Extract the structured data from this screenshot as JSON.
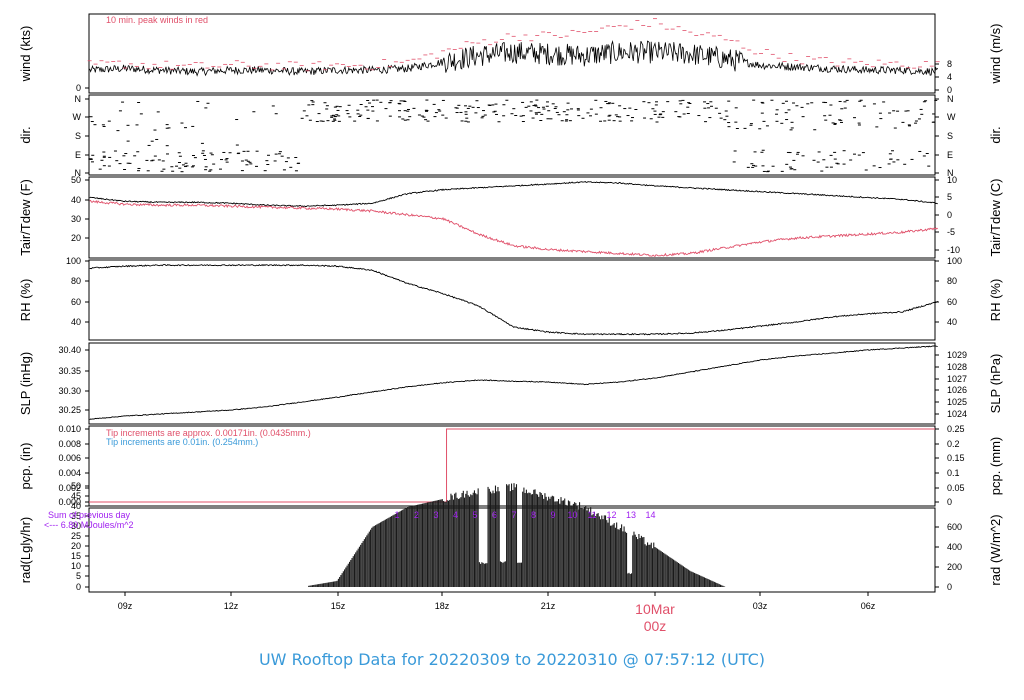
{
  "footer": {
    "title": "UW Rooftop Data for 20220309  to  20220310 @ 07:57:12  (UTC)",
    "color": "#3a9ad9"
  },
  "xaxis": {
    "ticks": [
      "09z",
      "12z",
      "15z",
      "18z",
      "21z",
      "00z",
      "03z",
      "06z"
    ],
    "date_label": "10Mar",
    "date_tick": "00z",
    "date_color": "#e0506a"
  },
  "colors": {
    "accent": "#e0506a",
    "blue": "#3a9ad9",
    "purple": "#a020f0"
  },
  "panels": {
    "wind": {
      "ylabel_left": "wind (kts)",
      "ylabel_right": "wind (m/s)",
      "ticks_left": [
        "0",
        "5",
        "10",
        "15",
        "20"
      ],
      "ticks_right": [
        "0",
        "2",
        "4",
        "6",
        "8",
        "10"
      ],
      "note": "10 min. peak winds in red"
    },
    "dir": {
      "ylabel_left": "dir.",
      "ylabel_right": "dir.",
      "ticks_left": [
        "N",
        "E",
        "S",
        "W",
        "N"
      ],
      "ticks_right": [
        "N",
        "E",
        "S",
        "W",
        "N"
      ]
    },
    "temp": {
      "ylabel_left": "Tair/Tdew (F)",
      "ylabel_right": "Tair/Tdew (C)",
      "ticks_left": [
        "20",
        "30",
        "40",
        "50"
      ],
      "ticks_right": [
        "-10",
        "-5",
        "0",
        "5",
        "10"
      ]
    },
    "rh": {
      "ylabel_left": "RH (%)",
      "ylabel_right": "RH (%)",
      "ticks_left": [
        "40",
        "60",
        "80",
        "100"
      ],
      "ticks_right": [
        "40",
        "60",
        "80",
        "100"
      ]
    },
    "slp": {
      "ylabel_left": "SLP (inHg)",
      "ylabel_right": "SLP (hPa)",
      "ticks_left": [
        "30.25",
        "30.30",
        "30.35",
        "30.40"
      ],
      "ticks_right": [
        "1024",
        "1025",
        "1026",
        "1027",
        "1028",
        "1029"
      ]
    },
    "pcp": {
      "ylabel_left": "pcp. (in)",
      "ylabel_right": "pcp. (mm)",
      "ticks_left": [
        "0.000",
        "0.002",
        "0.004",
        "0.006",
        "0.008",
        "0.010"
      ],
      "ticks_right": [
        "0",
        "0.05",
        "0.1",
        "0.15",
        "0.2",
        "0.25"
      ],
      "note_red": "Tip increments are approx. 0.00171in. (0.0435mm.)",
      "note_blue": "Tip increments are 0.01in. (0.254mm.)"
    },
    "rad": {
      "ylabel_left": "rad(Lgly/hr)",
      "ylabel_right": "rad (W/m^2)",
      "ticks_left": [
        "0",
        "5",
        "10",
        "15",
        "20",
        "25",
        "30",
        "35",
        "40",
        "45",
        "50"
      ],
      "ticks_right": [
        "0",
        "200",
        "400",
        "600"
      ],
      "note1": "Sum of previous day",
      "note2": "<--- 6.80 MJoules/m^2",
      "hour_marks": [
        "1",
        "2",
        "3",
        "4",
        "5",
        "6",
        "7",
        "8",
        "9",
        "10",
        "11",
        "12",
        "13",
        "14"
      ]
    }
  },
  "chart_data": [
    {
      "type": "line",
      "name": "wind",
      "x": [
        "08z",
        "09z",
        "10z",
        "11z",
        "12z",
        "13z",
        "14z",
        "15z",
        "16z",
        "17z",
        "18z",
        "19z",
        "20z",
        "21z",
        "22z",
        "23z",
        "00z",
        "01z",
        "02z",
        "03z",
        "04z",
        "05z",
        "06z",
        "07z",
        "08z"
      ],
      "series": [
        {
          "values": [
            5.5,
            6,
            5.5,
            5,
            5.5,
            5.5,
            5,
            5.5,
            5.5,
            6,
            8,
            10,
            11,
            10.5,
            10,
            11,
            11,
            10.5,
            9,
            7,
            6.5,
            6,
            5.5,
            5.5,
            5
          ]
        },
        {
          "name": "10 min. peak winds",
          "values": [
            7,
            7.5,
            7,
            6.5,
            7,
            7,
            6.5,
            7,
            7,
            8,
            11,
            14,
            16,
            16,
            17,
            19,
            20,
            17,
            15,
            11,
            9,
            8,
            7.5,
            7.5,
            7
          ]
        }
      ],
      "ylim": [
        0,
        24
      ]
    },
    {
      "type": "line",
      "name": "temperature",
      "x": [
        "08z",
        "09z",
        "10z",
        "11z",
        "12z",
        "13z",
        "14z",
        "15z",
        "16z",
        "17z",
        "18z",
        "19z",
        "20z",
        "21z",
        "22z",
        "23z",
        "00z",
        "01z",
        "02z",
        "03z",
        "04z",
        "05z",
        "06z",
        "07z",
        "08z"
      ],
      "series": [
        {
          "values": [
            41,
            39,
            38.5,
            38.5,
            38,
            37,
            36.5,
            37,
            38,
            43,
            45,
            46,
            47,
            48,
            49,
            48.5,
            47,
            46,
            45,
            44,
            43,
            42,
            41,
            40,
            38
          ]
        },
        {
          "values": [
            39,
            37.5,
            37,
            37,
            36.5,
            36,
            35.5,
            35,
            34,
            32,
            30,
            22,
            16,
            14,
            13,
            12,
            11,
            12,
            15,
            18,
            20,
            21,
            22,
            23,
            25
          ]
        }
      ],
      "ylim": [
        10,
        50
      ]
    },
    {
      "type": "line",
      "name": "RH",
      "x": [
        "08z",
        "09z",
        "10z",
        "11z",
        "12z",
        "13z",
        "14z",
        "15z",
        "16z",
        "17z",
        "18z",
        "19z",
        "20z",
        "21z",
        "22z",
        "23z",
        "00z",
        "01z",
        "02z",
        "03z",
        "04z",
        "05z",
        "06z",
        "07z",
        "08z"
      ],
      "values": [
        93,
        95,
        96,
        96,
        96,
        96,
        96,
        95,
        91,
        78,
        68,
        56,
        35,
        30,
        28,
        28,
        28,
        29,
        32,
        36,
        40,
        45,
        48,
        50,
        60
      ],
      "ylim": [
        20,
        100
      ]
    },
    {
      "type": "line",
      "name": "SLP",
      "x": [
        "08z",
        "09z",
        "10z",
        "11z",
        "12z",
        "13z",
        "14z",
        "15z",
        "16z",
        "17z",
        "18z",
        "19z",
        "20z",
        "21z",
        "22z",
        "23z",
        "00z",
        "01z",
        "02z",
        "03z",
        "04z",
        "05z",
        "06z",
        "07z",
        "08z"
      ],
      "values": [
        30.227,
        30.235,
        30.24,
        30.245,
        30.25,
        30.258,
        30.27,
        30.282,
        30.295,
        30.308,
        30.318,
        30.325,
        30.322,
        30.32,
        30.314,
        30.32,
        30.33,
        30.345,
        30.36,
        30.375,
        30.385,
        30.392,
        30.4,
        30.405,
        30.41
      ],
      "ylim": [
        30.22,
        30.415
      ]
    },
    {
      "type": "line",
      "name": "precipitation",
      "x": [
        "08z",
        "18z",
        "18.1z",
        "08z"
      ],
      "values": [
        0,
        0,
        0.01,
        0.01
      ],
      "ylim": [
        0,
        0.01
      ]
    },
    {
      "type": "area",
      "name": "radiation",
      "x": [
        "14z",
        "15z",
        "16z",
        "17z",
        "18z",
        "19z",
        "20z",
        "21z",
        "22z",
        "23z",
        "00z",
        "01z",
        "02z"
      ],
      "values": [
        0,
        3,
        30,
        40,
        44,
        48,
        50,
        45,
        40,
        30,
        20,
        8,
        0
      ],
      "ylim": [
        0,
        52
      ]
    }
  ]
}
